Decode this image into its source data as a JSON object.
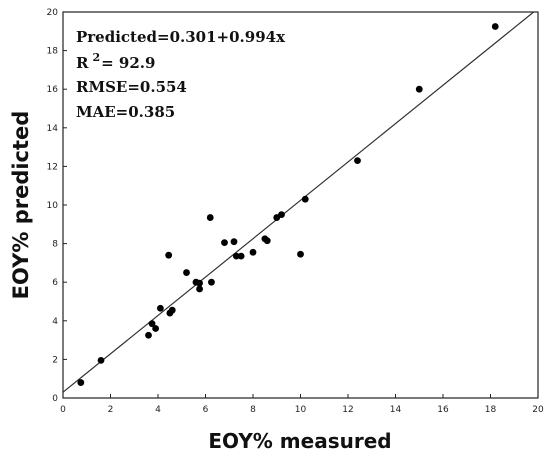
{
  "chart_data": {
    "type": "scatter",
    "xlabel": "EOY% measured",
    "ylabel": "EOY% predicted",
    "xlim": [
      0,
      20
    ],
    "ylim": [
      0,
      20
    ],
    "x_ticks": [
      "0",
      "2",
      "4",
      "6",
      "8",
      "10",
      "12",
      "14",
      "16",
      "18",
      "20"
    ],
    "y_ticks": [
      "0",
      "2",
      "4",
      "6",
      "8",
      "10",
      "12",
      "14",
      "16",
      "18",
      "20"
    ],
    "grid": false,
    "fit_line": {
      "intercept": 0.301,
      "slope": 0.994
    },
    "annotations": {
      "equation": "Predicted=0.301+0.994x",
      "r2_prefix": "R",
      "r2_superscript": "2",
      "r2_value": "= 92.9",
      "rmse": "RMSE=0.554",
      "mae": "MAE=0.385"
    },
    "colors": {
      "points": "#000000",
      "line": "#333333",
      "axes": "#222222"
    },
    "points": [
      {
        "x": 0.75,
        "y": 0.8
      },
      {
        "x": 1.6,
        "y": 1.95
      },
      {
        "x": 3.6,
        "y": 3.25
      },
      {
        "x": 3.75,
        "y": 3.85
      },
      {
        "x": 3.9,
        "y": 3.6
      },
      {
        "x": 4.1,
        "y": 4.65
      },
      {
        "x": 4.5,
        "y": 4.4
      },
      {
        "x": 4.6,
        "y": 4.55
      },
      {
        "x": 4.45,
        "y": 7.4
      },
      {
        "x": 5.2,
        "y": 6.5
      },
      {
        "x": 5.6,
        "y": 6.0
      },
      {
        "x": 5.75,
        "y": 5.65
      },
      {
        "x": 5.75,
        "y": 5.95
      },
      {
        "x": 6.2,
        "y": 9.35
      },
      {
        "x": 6.25,
        "y": 6.0
      },
      {
        "x": 6.8,
        "y": 8.05
      },
      {
        "x": 7.2,
        "y": 8.1
      },
      {
        "x": 7.3,
        "y": 7.35
      },
      {
        "x": 7.5,
        "y": 7.35
      },
      {
        "x": 8.0,
        "y": 7.55
      },
      {
        "x": 8.5,
        "y": 8.25
      },
      {
        "x": 8.6,
        "y": 8.15
      },
      {
        "x": 9.0,
        "y": 9.35
      },
      {
        "x": 9.2,
        "y": 9.5
      },
      {
        "x": 10.0,
        "y": 7.45
      },
      {
        "x": 10.2,
        "y": 10.3
      },
      {
        "x": 12.4,
        "y": 12.3
      },
      {
        "x": 15.0,
        "y": 16.0
      },
      {
        "x": 18.2,
        "y": 19.25
      }
    ]
  }
}
